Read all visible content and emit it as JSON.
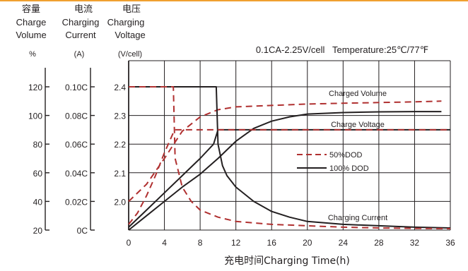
{
  "colors": {
    "accent": "#f0a030",
    "solid": "#231f20",
    "dashed": "#b03030"
  },
  "header": {
    "col1": {
      "zh": "容量",
      "en1": "Charge",
      "en2": "Volume",
      "unit": "%"
    },
    "col2": {
      "zh": "电流",
      "en1": "Charging",
      "en2": "Current",
      "unit": "(A)"
    },
    "col3": {
      "zh": "电压",
      "en1": "Charging",
      "en2": "Voltage",
      "unit": "(V/cell)"
    }
  },
  "condition_text": "0.1CA-2.25V/cell   Temperature:25℃/77℉",
  "chart_data": {
    "type": "line",
    "xlabel": "充电时间Charging Time(h)",
    "xlim": [
      0,
      36
    ],
    "x_ticks": [
      "0",
      "4",
      "8",
      "12",
      "16",
      "20",
      "24",
      "28",
      "32",
      "36"
    ],
    "grid": true,
    "y_axes": [
      {
        "title": "Charge Volume",
        "unit": "%",
        "ticks": [
          "20",
          "40",
          "60",
          "80",
          "100",
          "120"
        ],
        "range": [
          20,
          120
        ]
      },
      {
        "title": "Charging Current",
        "unit": "(A)",
        "ticks": [
          "0C",
          "0.02C",
          "0.04C",
          "0.06C",
          "0.08C",
          "0.10C"
        ],
        "range": [
          0,
          0.1
        ]
      },
      {
        "title": "Charging Voltage",
        "unit": "(V/cell)",
        "ticks": [
          "2.0",
          "2.1",
          "2.2",
          "2.3",
          "2.4"
        ],
        "range": [
          1.9,
          2.4
        ]
      }
    ],
    "legend": [
      {
        "name": "50%DOD",
        "style": "dashed"
      },
      {
        "name": "100% DOD",
        "style": "solid"
      }
    ],
    "annotations": [
      "Charged Volume",
      "Charge Voltage",
      "Charging Current"
    ],
    "series": [
      {
        "curve": "Charged Volume",
        "dod": "100% DOD",
        "style": "solid",
        "axis": "Charge Volume (%)",
        "x": [
          0,
          2,
          4,
          6,
          8,
          10,
          12,
          14,
          16,
          18,
          20,
          24,
          28,
          32,
          35
        ],
        "y": [
          20,
          30,
          40,
          50,
          59,
          70,
          82,
          91,
          96,
          99,
          101,
          102,
          102.5,
          102.7,
          102.7
        ]
      },
      {
        "curve": "Charged Volume",
        "dod": "50%DOD",
        "style": "dashed",
        "axis": "Charge Volume (%)",
        "x": [
          0,
          2,
          4,
          6,
          8,
          10,
          12,
          16,
          20,
          24,
          28,
          32,
          35
        ],
        "y": [
          40,
          52,
          70,
          89,
          99,
          104,
          106,
          107,
          108,
          108.5,
          109,
          109.5,
          110
        ]
      },
      {
        "curve": "Charging Current",
        "dod": "100% DOD",
        "style": "solid",
        "axis": "Charging Current (A)",
        "x": [
          0,
          9.8,
          10,
          10.5,
          11,
          12,
          14,
          16,
          18,
          20,
          24,
          28,
          32,
          36
        ],
        "y": [
          0.1,
          0.1,
          0.06,
          0.045,
          0.038,
          0.03,
          0.02,
          0.013,
          0.009,
          0.006,
          0.004,
          0.003,
          0.002,
          0.0015
        ]
      },
      {
        "curve": "Charging Current",
        "dod": "50%DOD",
        "style": "dashed",
        "axis": "Charging Current (A)",
        "x": [
          0,
          5,
          5.2,
          5.6,
          6,
          7,
          8,
          10,
          12,
          16,
          20,
          24,
          28,
          32,
          36
        ],
        "y": [
          0.1,
          0.1,
          0.05,
          0.04,
          0.03,
          0.02,
          0.014,
          0.009,
          0.006,
          0.004,
          0.003,
          0.002,
          0.0015,
          0.0012,
          0.001
        ]
      },
      {
        "curve": "Charge Voltage",
        "dod": "100% DOD",
        "style": "solid",
        "axis": "Charging Voltage (V/cell)",
        "x": [
          0,
          2,
          4,
          6,
          8,
          9.5,
          10,
          12,
          16,
          20,
          24,
          28,
          32,
          36
        ],
        "y": [
          1.91,
          1.97,
          2.03,
          2.09,
          2.15,
          2.2,
          2.25,
          2.25,
          2.25,
          2.25,
          2.25,
          2.25,
          2.25,
          2.25
        ]
      },
      {
        "curve": "Charge Voltage",
        "dod": "50%DOD",
        "style": "dashed",
        "axis": "Charging Voltage (V/cell)",
        "x": [
          0,
          1,
          2,
          3,
          4,
          5,
          5.2,
          8,
          12,
          16,
          20,
          24,
          28,
          32,
          36
        ],
        "y": [
          1.92,
          1.96,
          2.02,
          2.09,
          2.17,
          2.24,
          2.25,
          2.25,
          2.25,
          2.25,
          2.25,
          2.25,
          2.25,
          2.25,
          2.25
        ]
      }
    ]
  }
}
